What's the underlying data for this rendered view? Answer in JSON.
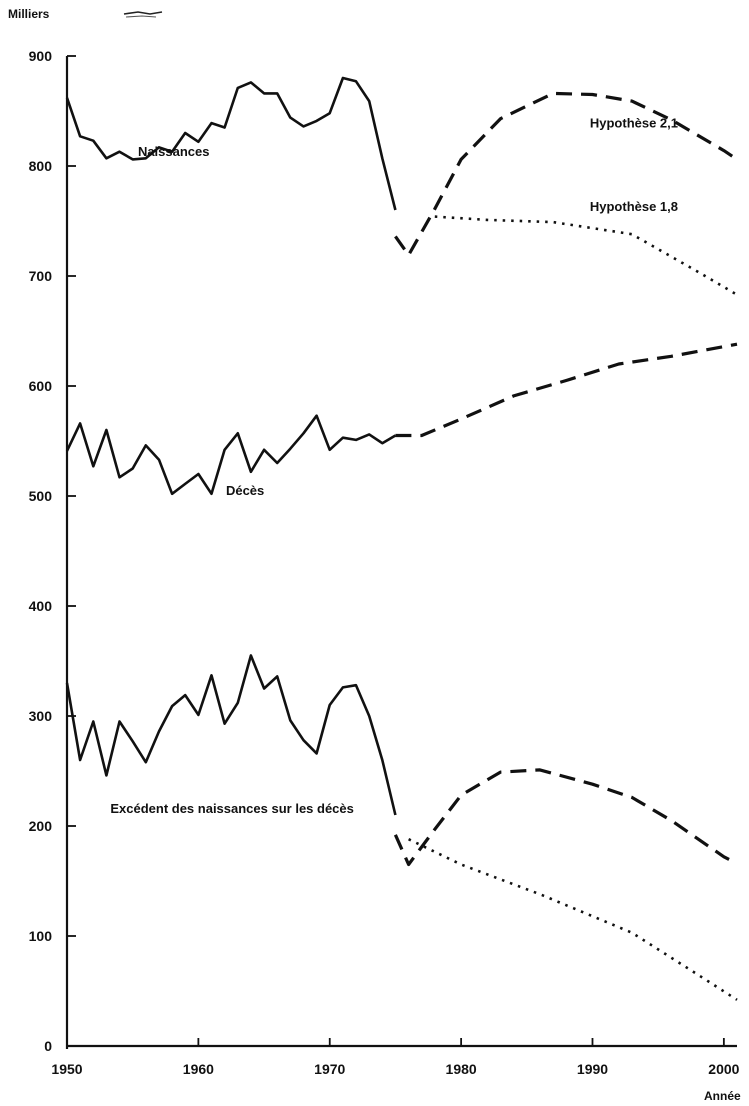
{
  "chart_data": {
    "type": "line",
    "title": "",
    "ylabel": "Milliers",
    "xlabel": "Année",
    "xlim": [
      1950,
      2001
    ],
    "ylim": [
      0,
      900
    ],
    "xticks": [
      1950,
      1960,
      1970,
      1980,
      1990,
      2000
    ],
    "yticks": [
      0,
      100,
      200,
      300,
      400,
      500,
      600,
      700,
      800,
      900
    ],
    "grid": false,
    "annotations": [
      {
        "text": "Naissances",
        "x": 1955.4,
        "y": 809
      },
      {
        "text": "Décès",
        "x": 1962.1,
        "y": 501
      },
      {
        "text": "Excédent des naissances sur les décès",
        "x": 1953.3,
        "y": 212
      },
      {
        "text": "Hypothèse 2,1",
        "x": 1989.8,
        "y": 835
      },
      {
        "text": "Hypothèse 1,8",
        "x": 1989.8,
        "y": 759
      }
    ],
    "series": [
      {
        "key": "naiss_obs",
        "style": "solid",
        "x": [
          1950,
          1951,
          1952,
          1953,
          1954,
          1955,
          1956,
          1957,
          1958,
          1959,
          1960,
          1961,
          1962,
          1963,
          1964,
          1965,
          1966,
          1967,
          1968,
          1969,
          1970,
          1971,
          1972,
          1973,
          1974,
          1975
        ],
        "y": [
          862,
          827,
          823,
          807,
          813,
          806,
          807,
          817,
          813,
          830,
          822,
          839,
          835,
          871,
          876,
          866,
          866,
          844,
          836,
          841,
          848,
          880,
          877,
          859,
          807,
          760
        ]
      },
      {
        "key": "naiss_21",
        "style": "dashed",
        "x": [
          1975,
          1976,
          1978,
          1980,
          1983,
          1987,
          1990,
          1993,
          1996,
          2000,
          2001
        ],
        "y": [
          736,
          719,
          761,
          806,
          843,
          866,
          865,
          859,
          842,
          814,
          806
        ]
      },
      {
        "key": "naiss_18",
        "style": "dotted",
        "x": [
          1978,
          1982,
          1987,
          1993,
          1998,
          2001
        ],
        "y": [
          754,
          751,
          749,
          738,
          704,
          683
        ]
      },
      {
        "key": "deces_obs",
        "style": "solid",
        "x": [
          1950,
          1951,
          1952,
          1953,
          1954,
          1955,
          1956,
          1957,
          1958,
          1959,
          1960,
          1961,
          1962,
          1963,
          1964,
          1965,
          1966,
          1967,
          1968,
          1969,
          1970,
          1971,
          1972,
          1973,
          1974,
          1975
        ],
        "y": [
          541,
          566,
          527,
          560,
          517,
          525,
          546,
          533,
          502,
          511,
          520,
          502,
          542,
          557,
          522,
          542,
          530,
          543,
          557,
          573,
          542,
          553,
          551,
          556,
          548,
          555
        ]
      },
      {
        "key": "deces_proj",
        "style": "dashed",
        "x": [
          1975,
          1977,
          1980,
          1984,
          1988,
          1992,
          1996,
          2001
        ],
        "y": [
          555,
          555,
          570,
          591,
          605,
          620,
          627,
          638
        ]
      },
      {
        "key": "exc_obs",
        "style": "solid",
        "x": [
          1950,
          1951,
          1952,
          1953,
          1954,
          1955,
          1956,
          1957,
          1958,
          1959,
          1960,
          1961,
          1962,
          1963,
          1964,
          1965,
          1966,
          1967,
          1968,
          1969,
          1970,
          1971,
          1972,
          1973,
          1974,
          1975
        ],
        "y": [
          330,
          260,
          295,
          246,
          295,
          277,
          258,
          286,
          309,
          319,
          301,
          337,
          293,
          312,
          355,
          325,
          336,
          296,
          278,
          266,
          310,
          326,
          328,
          300,
          260,
          210
        ]
      },
      {
        "key": "exc_21",
        "style": "dashed",
        "x": [
          1975,
          1976,
          1978,
          1980,
          1983,
          1986,
          1990,
          1993,
          1996,
          2000,
          2001
        ],
        "y": [
          192,
          165,
          197,
          228,
          249,
          251,
          238,
          226,
          205,
          172,
          166
        ]
      },
      {
        "key": "exc_18",
        "style": "dotted",
        "x": [
          1976,
          1980,
          1986,
          1993,
          1998,
          2001
        ],
        "y": [
          188,
          165,
          138,
          103,
          65,
          42
        ]
      }
    ]
  }
}
